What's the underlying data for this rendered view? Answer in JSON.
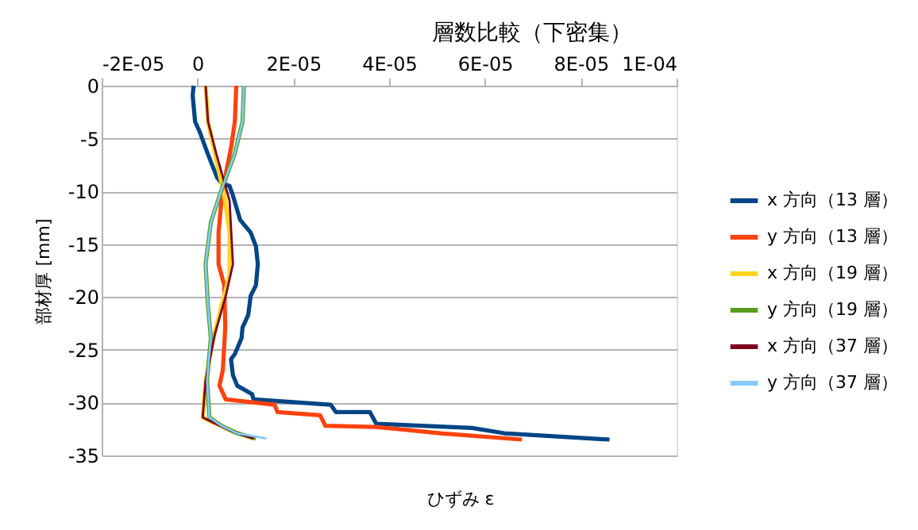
{
  "chart_data": {
    "type": "line",
    "title": "層数比較（下密集）",
    "xlabel": "ひずみ ε",
    "ylabel": "部材厚 [mm]",
    "xlim": [
      -2e-05,
      0.0001
    ],
    "xticks": [
      {
        "value": -2e-05,
        "label": "-2E-05"
      },
      {
        "value": 0,
        "label": "0"
      },
      {
        "value": 2e-05,
        "label": "2E-05"
      },
      {
        "value": 4e-05,
        "label": "4E-05"
      },
      {
        "value": 6e-05,
        "label": "6E-05"
      },
      {
        "value": 8e-05,
        "label": "8E-05"
      },
      {
        "value": 0.0001,
        "label": "1E-04"
      }
    ],
    "ylim": [
      -35,
      0
    ],
    "yticks": [
      0,
      -5,
      -10,
      -15,
      -20,
      -25,
      -30,
      -35
    ],
    "grid": "y",
    "legend": "right",
    "marker": "none",
    "line_style": "solid",
    "series": [
      {
        "name": "x 方向（13 層）",
        "color": "#004586",
        "x": [
          -8e-07,
          -1e-06,
          -5e-07,
          5e-07,
          1.7e-06,
          2.8e-06,
          4.1e-06,
          5e-06,
          6.7e-06,
          7.4e-06,
          8.9e-06,
          1.11e-05,
          1.22e-05,
          1.26e-05,
          1.22e-05,
          1.11e-05,
          1.06e-05,
          9.4e-06,
          9.2e-06,
          7.8e-06,
          7e-06,
          7.4e-06,
          8.3e-06,
          1.14e-05,
          1.17e-05,
          2.78e-05,
          2.89e-05,
          3.6e-05,
          3.73e-05,
          5.73e-05,
          6.4e-05,
          8.6e-05
        ],
        "values": [
          0,
          -0.9,
          -3.4,
          -4.4,
          -5.9,
          -7.2,
          -8.7,
          -9.2,
          -9.5,
          -10.4,
          -12.7,
          -13.9,
          -15.2,
          -16.9,
          -18.9,
          -19.9,
          -21.7,
          -22.9,
          -23.9,
          -25.4,
          -25.9,
          -27.4,
          -28.4,
          -29.2,
          -29.7,
          -30.2,
          -30.9,
          -30.9,
          -32.0,
          -32.4,
          -32.9,
          -33.5
        ]
      },
      {
        "name": "y 方向（13 層）",
        "color": "#ff420e",
        "x": [
          8.1e-06,
          7.8e-06,
          7e-06,
          6.1e-06,
          5e-06,
          4.4e-06,
          4.4e-06,
          5.6e-06,
          5.8e-06,
          5.3e-06,
          4.6e-06,
          5.9e-06,
          1.61e-05,
          1.67e-05,
          2.56e-05,
          2.67e-05,
          3.72e-05,
          5.07e-05,
          6.77e-05
        ],
        "values": [
          0,
          -3.4,
          -5.9,
          -7.9,
          -10.9,
          -13.9,
          -16.9,
          -18.9,
          -22.9,
          -26.9,
          -28.4,
          -29.7,
          -30.2,
          -30.9,
          -31.2,
          -32.2,
          -32.3,
          -32.9,
          -33.5
        ]
      },
      {
        "name": "x 方向（19 層）",
        "color": "#ffd320",
        "x": [
          1.7e-06,
          2.2e-06,
          4.1e-06,
          5.6e-06,
          6.7e-06,
          6.7e-06,
          5e-06,
          3.3e-06,
          1.7e-06,
          1.1e-06,
          3.3e-06,
          7.2e-06,
          1.17e-05
        ],
        "values": [
          0,
          -3.4,
          -7.4,
          -10.4,
          -13.9,
          -17.9,
          -20.9,
          -23.9,
          -27.9,
          -31.4,
          -31.9,
          -32.7,
          -33.4
        ]
      },
      {
        "name": "y 方向（19 層）",
        "color": "#579d1c",
        "x": [
          9.7e-06,
          9.4e-06,
          7.8e-06,
          5e-06,
          2.8e-06,
          1.7e-06,
          2.2e-06,
          2.8e-06,
          2e-06,
          2.5e-06,
          5e-06,
          8.3e-06,
          1.22e-05
        ],
        "values": [
          0,
          -3.4,
          -6.4,
          -9.9,
          -12.9,
          -16.9,
          -20.9,
          -23.9,
          -27.9,
          -31.4,
          -32.2,
          -32.9,
          -33.4
        ]
      },
      {
        "name": "x 方向（37 層）",
        "color": "#7e0021",
        "x": [
          1.7e-06,
          2.2e-06,
          3.9e-06,
          6.7e-06,
          7.4e-06,
          5.9e-06,
          3.7e-06,
          1.7e-06,
          1.1e-06,
          3.3e-06,
          7.2e-06,
          1.17e-05
        ],
        "values": [
          0,
          -3.4,
          -6.4,
          -10.9,
          -16.9,
          -19.9,
          -23.4,
          -27.9,
          -31.4,
          -31.9,
          -32.7,
          -33.4
        ]
      },
      {
        "name": "y 方向（37 層）",
        "color": "#83caff",
        "x": [
          9.7e-06,
          9.4e-06,
          7.8e-06,
          5e-06,
          2.8e-06,
          1.7e-06,
          2.2e-06,
          2.8e-06,
          2e-06,
          2.5e-06,
          5e-06,
          8.3e-06,
          1.44e-05
        ],
        "values": [
          0,
          -3.4,
          -6.4,
          -9.9,
          -12.9,
          -16.9,
          -20.9,
          -23.9,
          -27.9,
          -31.4,
          -32.2,
          -32.9,
          -33.4
        ]
      }
    ]
  }
}
